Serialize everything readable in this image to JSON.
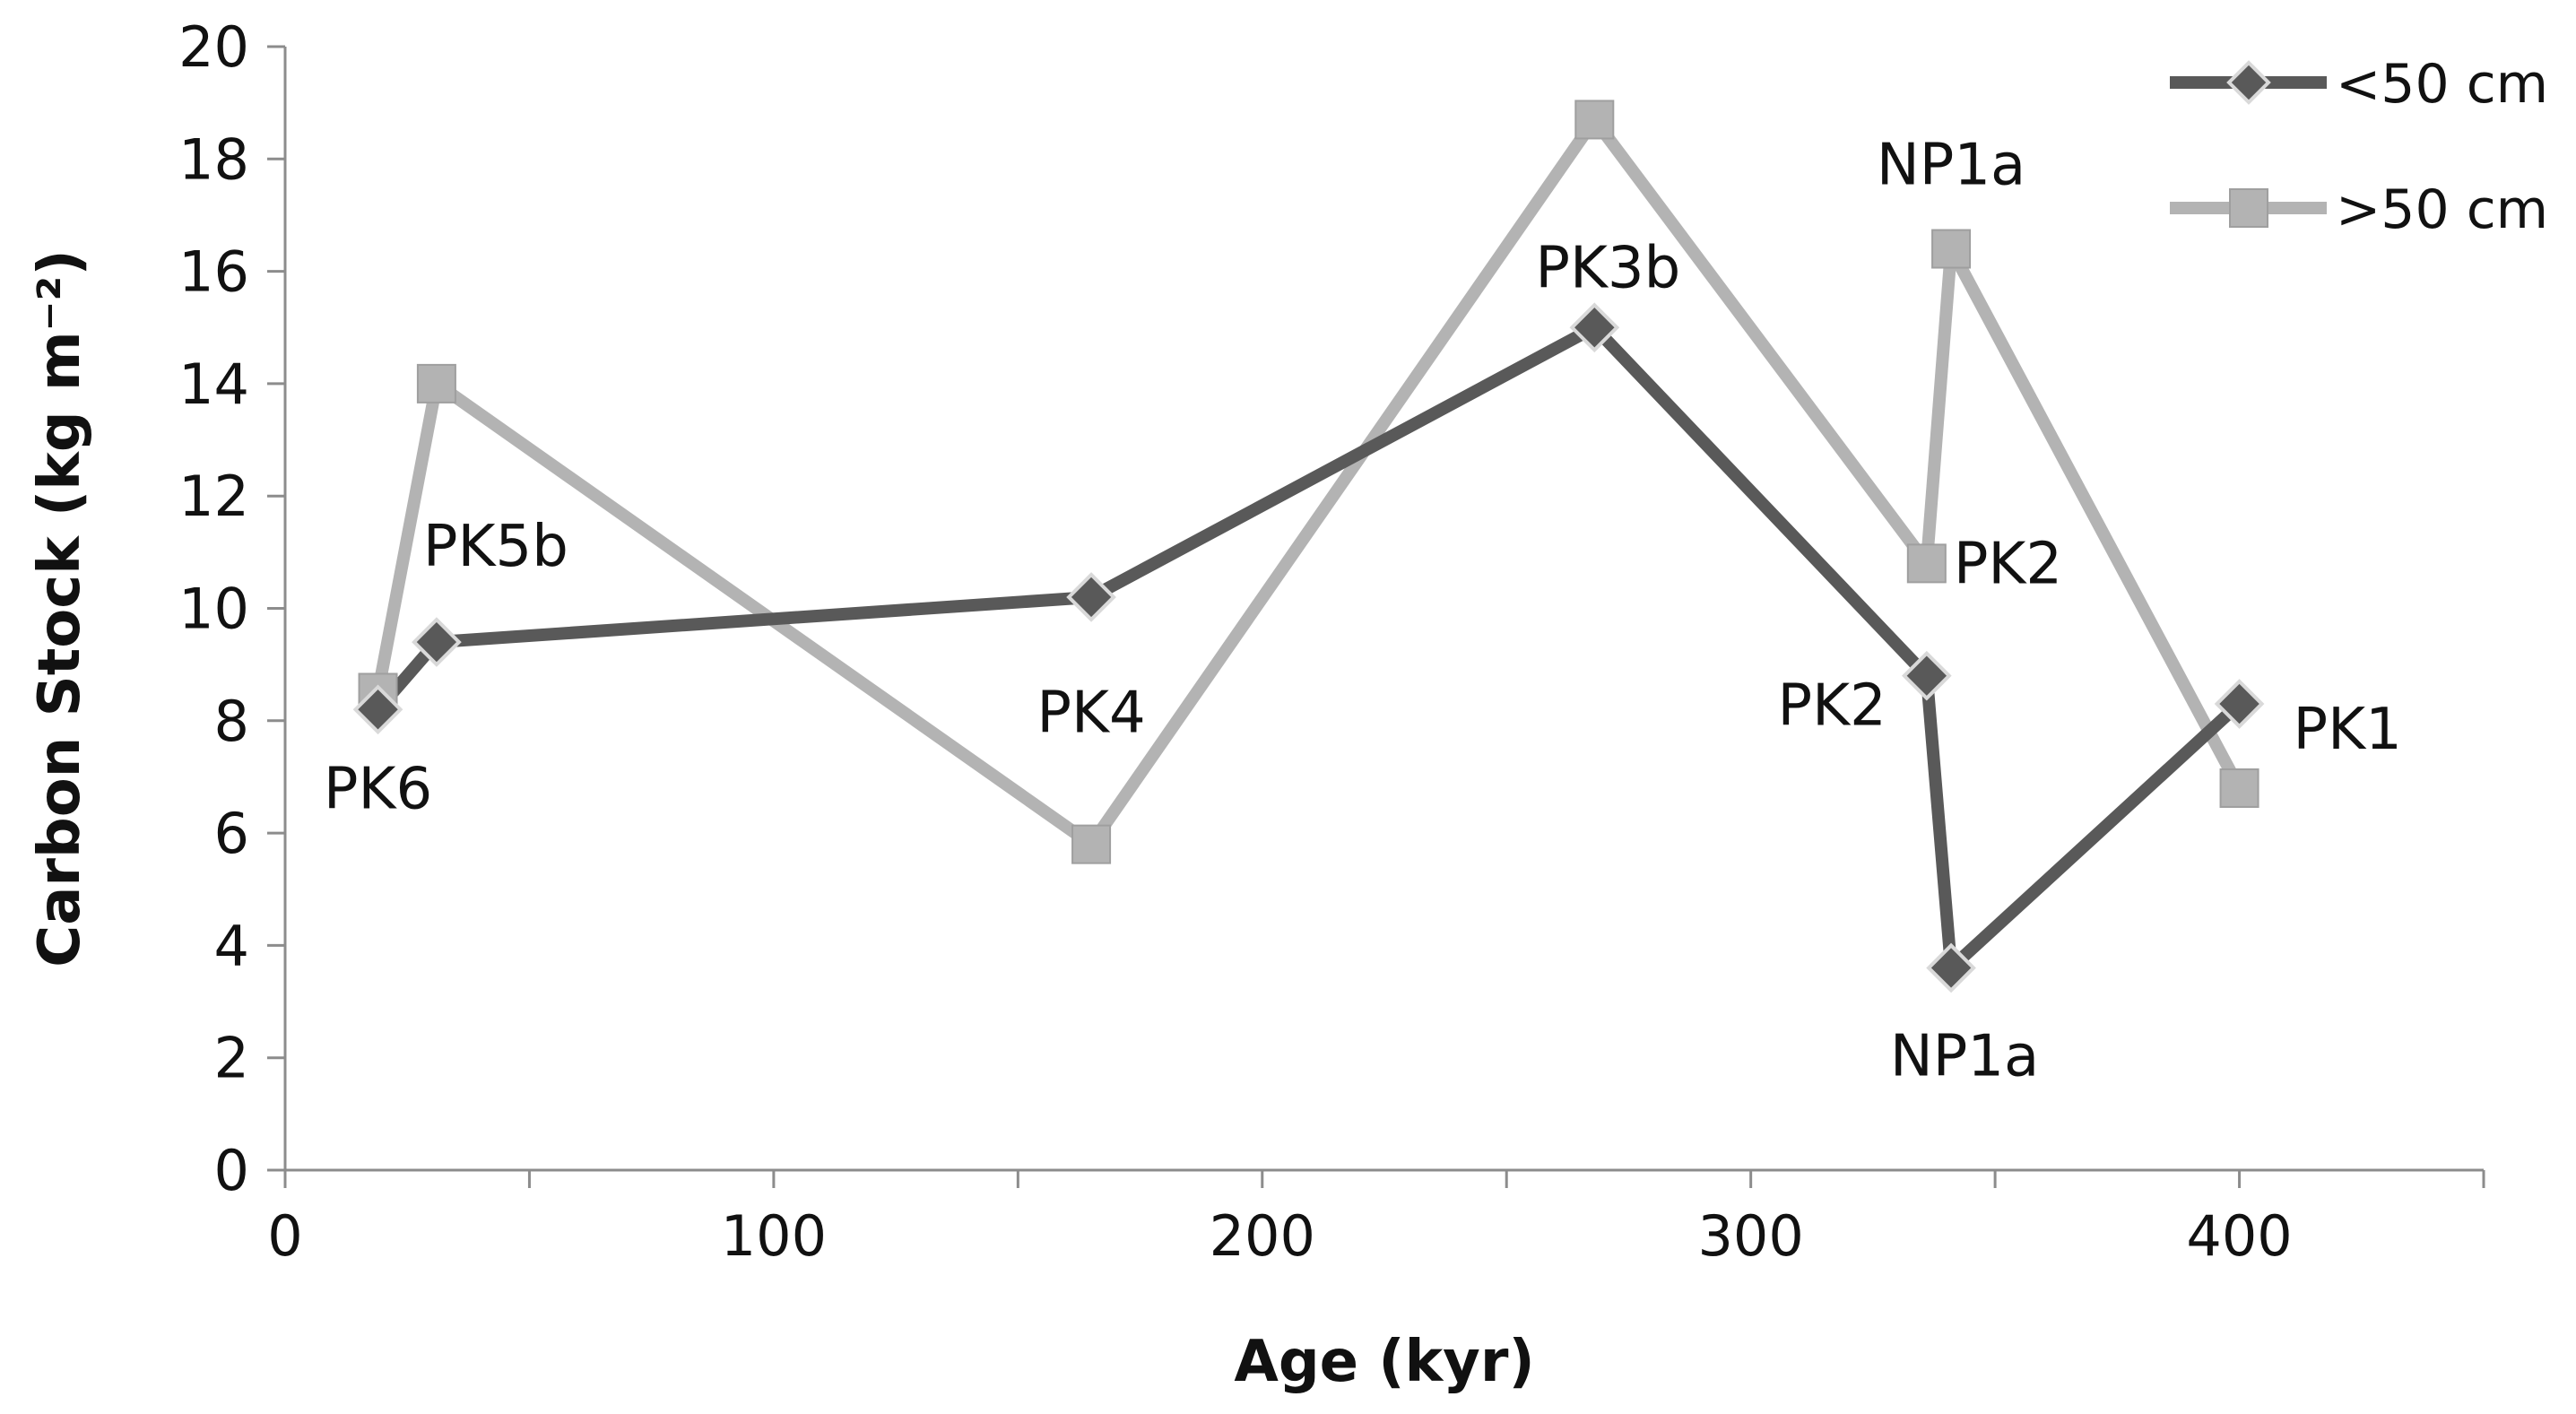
{
  "chart_data": {
    "type": "line",
    "xlabel": "Age (kyr)",
    "ylabel": "Carbon Stock (kg m⁻²)",
    "xlim": [
      0,
      450
    ],
    "ylim": [
      0,
      20
    ],
    "x_ticks": [
      "0",
      "100",
      "200",
      "300",
      "400"
    ],
    "y_ticks": [
      "0",
      "2",
      "4",
      "6",
      "8",
      "10",
      "12",
      "14",
      "16",
      "18",
      "20"
    ],
    "grid": false,
    "legend": "top-right",
    "series": [
      {
        "name": "<50 cm",
        "color": "#595959",
        "marker": "diamond",
        "points": [
          {
            "x": 19,
            "y": 8.2,
            "label": "PK6"
          },
          {
            "x": 31,
            "y": 9.4,
            "label": "PK5b"
          },
          {
            "x": 165,
            "y": 10.2,
            "label": ""
          },
          {
            "x": 268,
            "y": 15.0,
            "label": "PK3b"
          },
          {
            "x": 336,
            "y": 8.8,
            "label": "PK2"
          },
          {
            "x": 341,
            "y": 3.6,
            "label": "NP1a"
          },
          {
            "x": 400,
            "y": 8.3,
            "label": "PK1"
          }
        ]
      },
      {
        "name": ">50 cm",
        "color": "#b3b3b3",
        "marker": "square",
        "points": [
          {
            "x": 19,
            "y": 8.5,
            "label": ""
          },
          {
            "x": 31,
            "y": 14.0,
            "label": ""
          },
          {
            "x": 165,
            "y": 5.8,
            "label": "PK4"
          },
          {
            "x": 268,
            "y": 18.7,
            "label": ""
          },
          {
            "x": 336,
            "y": 10.8,
            "label": "PK2"
          },
          {
            "x": 341,
            "y": 16.4,
            "label": "NP1a"
          },
          {
            "x": 400,
            "y": 6.8,
            "label": ""
          }
        ]
      }
    ]
  }
}
